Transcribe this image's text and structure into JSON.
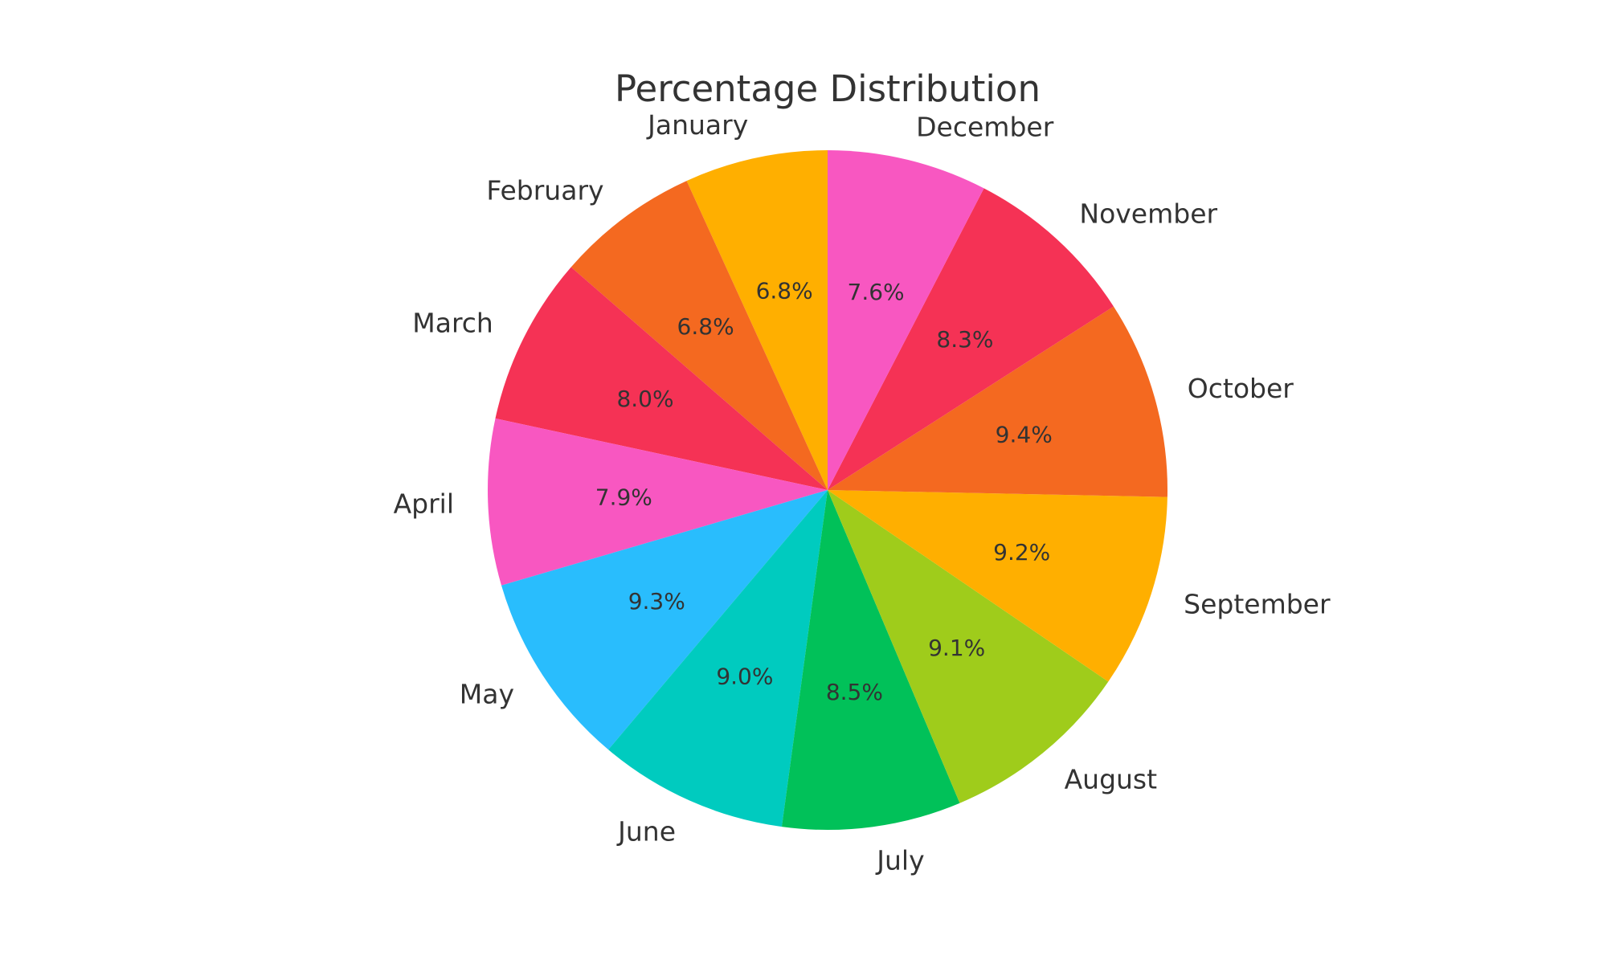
{
  "chart_data": {
    "type": "pie",
    "title": "Percentage Distribution",
    "start_angle_deg": 90,
    "direction": "counterclockwise",
    "slices": [
      {
        "label": "January",
        "value": 6.8,
        "pct_text": "6.8%",
        "color": "#FFAF00"
      },
      {
        "label": "February",
        "value": 6.8,
        "pct_text": "6.8%",
        "color": "#F46920"
      },
      {
        "label": "March",
        "value": 8.0,
        "pct_text": "8.0%",
        "color": "#F53255"
      },
      {
        "label": "April",
        "value": 7.9,
        "pct_text": "7.9%",
        "color": "#F857C1"
      },
      {
        "label": "May",
        "value": 9.3,
        "pct_text": "9.3%",
        "color": "#29BDFD"
      },
      {
        "label": "June",
        "value": 9.0,
        "pct_text": "9.0%",
        "color": "#00CBBF"
      },
      {
        "label": "July",
        "value": 8.5,
        "pct_text": "8.5%",
        "color": "#01C159"
      },
      {
        "label": "August",
        "value": 9.1,
        "pct_text": "9.1%",
        "color": "#9FCC1B"
      },
      {
        "label": "September",
        "value": 9.2,
        "pct_text": "9.2%",
        "color": "#FFAF00"
      },
      {
        "label": "October",
        "value": 9.4,
        "pct_text": "9.4%",
        "color": "#F46920"
      },
      {
        "label": "November",
        "value": 8.3,
        "pct_text": "8.3%",
        "color": "#F53255"
      },
      {
        "label": "December",
        "value": 7.6,
        "pct_text": "7.6%",
        "color": "#F857C1"
      }
    ]
  }
}
